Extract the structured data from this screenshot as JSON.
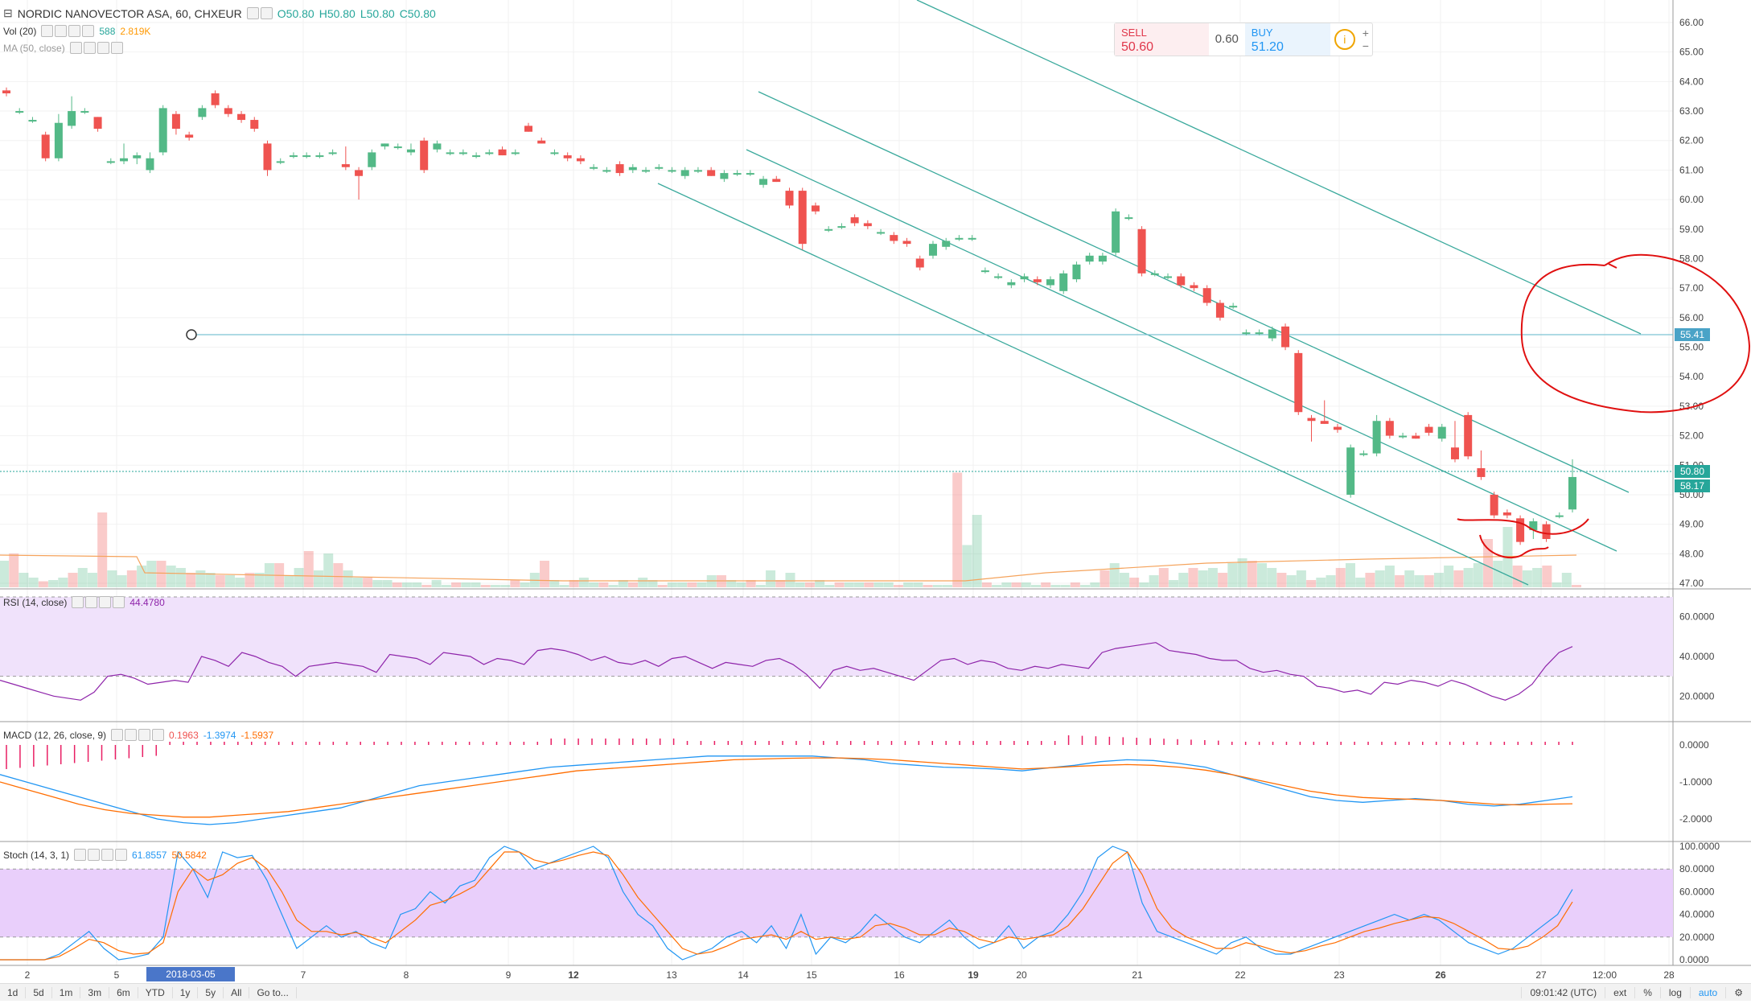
{
  "main_legend": {
    "title": "NORDIC NANOVECTOR ASA, 60, CHXEUR",
    "open": "O50.80",
    "high": "H50.80",
    "low": "L50.80",
    "close": "C50.80"
  },
  "vol_legend": {
    "label": "Vol (20)",
    "value1": "588",
    "value2": "2.819K"
  },
  "ma_legend": {
    "label": "MA (50, close)"
  },
  "trade_panel": {
    "sell_label": "SELL",
    "sell_price": "50.60",
    "spread": "0.60",
    "buy_label": "BUY",
    "buy_price": "51.20",
    "info_symbol": "i",
    "plus": "+",
    "minus": "−"
  },
  "rsi_legend": {
    "label": "RSI (14, close)",
    "value": "44.4780"
  },
  "macd_legend": {
    "label": "MACD (12, 26, close, 9)",
    "hist": "0.1963",
    "macd": "-1.3974",
    "signal": "-1.5937"
  },
  "stoch_legend": {
    "label": "Stoch (14, 3, 1)",
    "k": "61.8557",
    "d": "50.5842"
  },
  "price_axis": [
    "66.00",
    "65.00",
    "64.00",
    "63.00",
    "62.00",
    "61.00",
    "60.00",
    "59.00",
    "58.00",
    "57.00",
    "56.00",
    "55.00",
    "54.00",
    "53.00",
    "52.00",
    "51.00",
    "50.00",
    "49.00",
    "48.00",
    "47.00"
  ],
  "rsi_axis": [
    "60.0000",
    "40.0000",
    "20.0000"
  ],
  "macd_axis": [
    "0.0000",
    "-1.0000",
    "-2.0000"
  ],
  "stoch_axis": [
    "100.0000",
    "80.0000",
    "60.0000",
    "40.0000",
    "20.0000",
    "0.0000"
  ],
  "time_axis": [
    "2",
    "5",
    "7",
    "8",
    "9",
    "12",
    "13",
    "14",
    "15",
    "16",
    "19",
    "20",
    "21",
    "22",
    "23",
    "26",
    "27",
    "12:00",
    "28"
  ],
  "date_badge": "2018-03-05 15:00:00",
  "price_tags": {
    "hline": "55.41",
    "last": "50.80",
    "vol": "58.17"
  },
  "bottom_bar": {
    "ranges": [
      "1d",
      "5d",
      "1m",
      "3m",
      "6m",
      "YTD",
      "1y",
      "5y",
      "All"
    ],
    "goto": "Go to...",
    "time": "09:01:42 (UTC)",
    "ext": "ext",
    "percent": "%",
    "log": "log",
    "auto": "auto"
  },
  "colors": {
    "up": "#26a69a",
    "up_fill": "#53b987",
    "down": "#ef5350",
    "channel": "#3aa99c",
    "rsi_line": "#8e24aa",
    "rsi_band": "#f0e2fb",
    "macd_line": "#2196f3",
    "signal_line": "#ff6d00",
    "stoch_band": "#e9cffb",
    "annotation": "#e01010"
  },
  "chart_data": {
    "type": "candlestick",
    "candles": [
      [
        63.7,
        63.8,
        63.5,
        63.6
      ],
      [
        63.0,
        63.1,
        62.9,
        63.0
      ],
      [
        62.7,
        62.8,
        62.6,
        62.7
      ],
      [
        62.2,
        62.3,
        61.3,
        61.4
      ],
      [
        61.4,
        62.9,
        61.3,
        62.6
      ],
      [
        62.5,
        63.5,
        62.4,
        63.0
      ],
      [
        63.0,
        63.1,
        62.9,
        63.0
      ],
      [
        62.8,
        62.8,
        62.3,
        62.4
      ],
      [
        61.3,
        61.4,
        61.2,
        61.3
      ],
      [
        61.3,
        61.9,
        61.2,
        61.4
      ],
      [
        61.4,
        61.6,
        61.2,
        61.5
      ],
      [
        61.0,
        61.6,
        60.9,
        61.4
      ],
      [
        61.6,
        63.2,
        61.5,
        63.1
      ],
      [
        62.9,
        63.0,
        62.2,
        62.4
      ],
      [
        62.2,
        62.3,
        62.0,
        62.1
      ],
      [
        62.8,
        63.2,
        62.7,
        63.1
      ],
      [
        63.6,
        63.7,
        63.1,
        63.2
      ],
      [
        63.1,
        63.2,
        62.8,
        62.9
      ],
      [
        62.9,
        63.0,
        62.6,
        62.7
      ],
      [
        62.7,
        62.8,
        62.3,
        62.4
      ],
      [
        61.9,
        62.0,
        60.8,
        61.0
      ],
      [
        61.3,
        61.4,
        61.2,
        61.3
      ],
      [
        61.5,
        61.6,
        61.4,
        61.5
      ],
      [
        61.5,
        61.6,
        61.4,
        61.5
      ],
      [
        61.5,
        61.6,
        61.4,
        61.5
      ],
      [
        61.6,
        61.7,
        61.5,
        61.6
      ],
      [
        61.2,
        61.8,
        61.0,
        61.1
      ],
      [
        61.0,
        61.1,
        60.0,
        60.8
      ],
      [
        61.1,
        61.7,
        61.0,
        61.6
      ],
      [
        61.8,
        61.9,
        61.7,
        61.9
      ],
      [
        61.8,
        61.9,
        61.7,
        61.8
      ],
      [
        61.6,
        61.9,
        61.5,
        61.7
      ],
      [
        62.0,
        62.1,
        60.9,
        61.0
      ],
      [
        61.7,
        62.0,
        61.6,
        61.9
      ],
      [
        61.6,
        61.7,
        61.5,
        61.6
      ],
      [
        61.6,
        61.7,
        61.5,
        61.6
      ],
      [
        61.5,
        61.6,
        61.4,
        61.5
      ],
      [
        61.6,
        61.7,
        61.5,
        61.6
      ],
      [
        61.7,
        61.8,
        61.5,
        61.5
      ],
      [
        61.6,
        61.7,
        61.5,
        61.6
      ],
      [
        62.5,
        62.6,
        62.3,
        62.3
      ],
      [
        62.0,
        62.1,
        61.9,
        61.9
      ],
      [
        61.6,
        61.7,
        61.5,
        61.6
      ],
      [
        61.5,
        61.6,
        61.3,
        61.4
      ],
      [
        61.4,
        61.5,
        61.2,
        61.3
      ],
      [
        61.1,
        61.2,
        61.0,
        61.1
      ],
      [
        61.0,
        61.1,
        60.9,
        61.0
      ],
      [
        61.2,
        61.3,
        60.8,
        60.9
      ],
      [
        61.0,
        61.2,
        60.9,
        61.1
      ],
      [
        61.0,
        61.1,
        60.9,
        61.0
      ],
      [
        61.1,
        61.2,
        61.0,
        61.1
      ],
      [
        61.0,
        61.1,
        60.9,
        61.0
      ],
      [
        60.8,
        61.1,
        60.7,
        61.0
      ],
      [
        61.0,
        61.1,
        60.9,
        61.0
      ],
      [
        61.0,
        61.1,
        60.8,
        60.8
      ],
      [
        60.7,
        61.0,
        60.6,
        60.9
      ],
      [
        60.9,
        61.0,
        60.8,
        60.9
      ],
      [
        60.9,
        61.0,
        60.8,
        60.9
      ],
      [
        60.5,
        60.8,
        60.4,
        60.7
      ],
      [
        60.7,
        60.8,
        60.6,
        60.6
      ],
      [
        60.3,
        60.4,
        59.7,
        59.8
      ],
      [
        60.3,
        60.4,
        58.3,
        58.5
      ],
      [
        59.8,
        59.9,
        59.5,
        59.6
      ],
      [
        59.0,
        59.1,
        58.9,
        59.0
      ],
      [
        59.1,
        59.2,
        59.0,
        59.1
      ],
      [
        59.4,
        59.5,
        59.1,
        59.2
      ],
      [
        59.2,
        59.3,
        59.0,
        59.1
      ],
      [
        58.9,
        59.0,
        58.8,
        58.9
      ],
      [
        58.8,
        58.9,
        58.5,
        58.6
      ],
      [
        58.6,
        58.7,
        58.4,
        58.5
      ],
      [
        58.0,
        58.1,
        57.6,
        57.7
      ],
      [
        58.1,
        58.6,
        58.0,
        58.5
      ],
      [
        58.4,
        58.7,
        58.3,
        58.6
      ],
      [
        58.7,
        58.8,
        58.6,
        58.7
      ],
      [
        58.7,
        58.8,
        58.6,
        58.7
      ],
      [
        57.6,
        57.7,
        57.5,
        57.6
      ],
      [
        57.4,
        57.5,
        57.3,
        57.4
      ],
      [
        57.1,
        57.3,
        57.0,
        57.2
      ],
      [
        57.3,
        57.5,
        57.2,
        57.4
      ],
      [
        57.3,
        57.4,
        57.1,
        57.2
      ],
      [
        57.1,
        57.4,
        57.0,
        57.3
      ],
      [
        56.9,
        57.6,
        56.8,
        57.5
      ],
      [
        57.3,
        57.9,
        57.2,
        57.8
      ],
      [
        57.9,
        58.2,
        57.8,
        58.1
      ],
      [
        57.9,
        58.2,
        57.8,
        58.1
      ],
      [
        58.2,
        59.7,
        58.1,
        59.6
      ],
      [
        59.4,
        59.5,
        59.3,
        59.4
      ],
      [
        59.0,
        59.1,
        57.4,
        57.5
      ],
      [
        57.5,
        57.6,
        57.4,
        57.5
      ],
      [
        57.4,
        57.5,
        57.3,
        57.4
      ],
      [
        57.4,
        57.5,
        57.0,
        57.1
      ],
      [
        57.1,
        57.2,
        56.9,
        57.0
      ],
      [
        57.0,
        57.1,
        56.4,
        56.5
      ],
      [
        56.5,
        56.6,
        55.9,
        56.0
      ],
      [
        56.4,
        56.5,
        56.3,
        56.4
      ],
      [
        55.5,
        55.6,
        55.4,
        55.5
      ],
      [
        55.5,
        55.6,
        55.4,
        55.5
      ],
      [
        55.3,
        55.7,
        55.2,
        55.6
      ],
      [
        55.7,
        55.8,
        54.9,
        55.0
      ],
      [
        54.8,
        54.9,
        52.7,
        52.8
      ],
      [
        52.6,
        52.7,
        51.8,
        52.5
      ],
      [
        52.5,
        53.2,
        52.4,
        52.4
      ],
      [
        52.3,
        52.4,
        52.1,
        52.2
      ],
      [
        50.0,
        51.7,
        49.9,
        51.6
      ],
      [
        51.4,
        51.5,
        51.3,
        51.4
      ],
      [
        51.4,
        52.7,
        51.3,
        52.5
      ],
      [
        52.5,
        52.6,
        51.9,
        52.0
      ],
      [
        52.0,
        52.1,
        51.9,
        52.0
      ],
      [
        52.0,
        52.1,
        51.9,
        51.9
      ],
      [
        52.3,
        52.4,
        52.0,
        52.1
      ],
      [
        51.9,
        52.4,
        51.8,
        52.3
      ],
      [
        51.6,
        52.5,
        51.1,
        51.2
      ],
      [
        52.7,
        52.8,
        51.2,
        51.3
      ],
      [
        50.9,
        51.5,
        50.5,
        50.6
      ],
      [
        50.0,
        50.1,
        49.2,
        49.3
      ],
      [
        49.4,
        49.5,
        49.2,
        49.3
      ],
      [
        49.2,
        49.3,
        48.3,
        48.4
      ],
      [
        48.8,
        49.2,
        48.5,
        49.1
      ],
      [
        49.0,
        49.1,
        48.4,
        48.5
      ],
      [
        49.3,
        49.4,
        49.2,
        49.3
      ],
      [
        49.5,
        51.2,
        49.4,
        50.6
      ]
    ],
    "volume": [
      0.22,
      0.28,
      0.12,
      0.08,
      0.05,
      0.06,
      0.08,
      0.12,
      0.16,
      0.12,
      0.62,
      0.14,
      0.1,
      0.14,
      0.18,
      0.22,
      0.22,
      0.18,
      0.16,
      0.12,
      0.14,
      0.12,
      0.1,
      0.1,
      0.08,
      0.12,
      0.12,
      0.2,
      0.2,
      0.1,
      0.16,
      0.3,
      0.14,
      0.28,
      0.2,
      0.14,
      0.08,
      0.08,
      0.06,
      0.06,
      0.04,
      0.04,
      0.04,
      0.02,
      0.06,
      0.02,
      0.04,
      0.04,
      0.04,
      0.02,
      0.02,
      0.02,
      0.06,
      0.04,
      0.12,
      0.22,
      0.06,
      0.02,
      0.06,
      0.08,
      0.04,
      0.04,
      0.02,
      0.06,
      0.04,
      0.08,
      0.06,
      0.02,
      0.04,
      0.04,
      0.04,
      0.04,
      0.1,
      0.1,
      0.06,
      0.04,
      0.06,
      0.02,
      0.14,
      0.06,
      0.12,
      0.04,
      0.04,
      0.06,
      0.02,
      0.04,
      0.04,
      0.04,
      0.04,
      0.04,
      0.04,
      0.02,
      0.04,
      0.04,
      0.02,
      0.02,
      0.02,
      0.04,
      0.04,
      0.02,
      0.04,
      0.02,
      0.04,
      0.04,
      0.04,
      0.02,
      0.04,
      0.02,
      0.02,
      0.04,
      0.02,
      0.04,
      0.14,
      0.2,
      0.12,
      0.08,
      0.04,
      0.1,
      0.16,
      0.06,
      0.12,
      0.16,
      0.14,
      0.16,
      0.12,
      0.2,
      0.24,
      0.22,
      0.2,
      0.16,
      0.12,
      0.1,
      0.14,
      0.06,
      0.08,
      0.1,
      0.16,
      0.2,
      0.08,
      0.12,
      0.14,
      0.18,
      0.1,
      0.14,
      0.1,
      0.1,
      0.12,
      0.18,
      0.14,
      0.16,
      0.2,
      0.4,
      0.22,
      0.5,
      0.18,
      0.14,
      0.16,
      0.18,
      0.04,
      0.12,
      0.02
    ],
    "volume_spikes": {
      "vol_idx": [
        10,
        97,
        98,
        99
      ],
      "heights": [
        0.62,
        0.95,
        0.35,
        0.6
      ]
    },
    "rsi": [
      28,
      26,
      24,
      22,
      20,
      19,
      18,
      22,
      30,
      31,
      29,
      26,
      27,
      28,
      27,
      40,
      38,
      35,
      42,
      40,
      37,
      35,
      30,
      35,
      36,
      37,
      36,
      35,
      32,
      41,
      40,
      39,
      36,
      42,
      41,
      40,
      36,
      39,
      38,
      36,
      43,
      44,
      43,
      41,
      38,
      40,
      37,
      36,
      38,
      35,
      39,
      40,
      37,
      34,
      37,
      36,
      35,
      38,
      39,
      36,
      31,
      24,
      33,
      35,
      33,
      34,
      32,
      30,
      28,
      33,
      38,
      39,
      36,
      38,
      37,
      34,
      33,
      35,
      34,
      36,
      35,
      34,
      42,
      44,
      45,
      46,
      47,
      43,
      42,
      41,
      39,
      38,
      38,
      34,
      32,
      33,
      31,
      30,
      25,
      24,
      22,
      23,
      21,
      27,
      26,
      28,
      27,
      25,
      28,
      26,
      23,
      20,
      18,
      21,
      26,
      35,
      42,
      45
    ],
    "macd": [
      -0.8,
      -1.0,
      -1.2,
      -1.4,
      -1.6,
      -1.8,
      -2.0,
      -2.1,
      -2.15,
      -2.1,
      -2.0,
      -1.9,
      -1.8,
      -1.7,
      -1.5,
      -1.3,
      -1.1,
      -1.0,
      -0.9,
      -0.8,
      -0.7,
      -0.6,
      -0.55,
      -0.5,
      -0.45,
      -0.4,
      -0.35,
      -0.3,
      -0.3,
      -0.3,
      -0.3,
      -0.3,
      -0.35,
      -0.4,
      -0.5,
      -0.55,
      -0.6,
      -0.62,
      -0.65,
      -0.7,
      -0.62,
      -0.55,
      -0.45,
      -0.4,
      -0.42,
      -0.5,
      -0.6,
      -0.8,
      -1.0,
      -1.2,
      -1.4,
      -1.5,
      -1.55,
      -1.5,
      -1.45,
      -1.5,
      -1.6,
      -1.65,
      -1.6,
      -1.5,
      -1.4
    ],
    "signal": [
      -1.0,
      -1.2,
      -1.4,
      -1.6,
      -1.75,
      -1.85,
      -1.9,
      -1.95,
      -1.95,
      -1.9,
      -1.85,
      -1.8,
      -1.7,
      -1.6,
      -1.5,
      -1.4,
      -1.3,
      -1.2,
      -1.1,
      -1.0,
      -0.9,
      -0.8,
      -0.7,
      -0.65,
      -0.6,
      -0.55,
      -0.5,
      -0.45,
      -0.4,
      -0.38,
      -0.36,
      -0.35,
      -0.35,
      -0.37,
      -0.4,
      -0.45,
      -0.5,
      -0.55,
      -0.6,
      -0.65,
      -0.62,
      -0.58,
      -0.55,
      -0.53,
      -0.55,
      -0.6,
      -0.68,
      -0.8,
      -0.95,
      -1.1,
      -1.25,
      -1.35,
      -1.42,
      -1.45,
      -1.47,
      -1.5,
      -1.55,
      -1.6,
      -1.62,
      -1.6,
      -1.59
    ],
    "stoch_k": [
      0,
      0,
      0,
      0,
      5,
      15,
      25,
      10,
      0,
      2,
      5,
      20,
      95,
      80,
      55,
      95,
      90,
      92,
      70,
      40,
      10,
      20,
      30,
      20,
      25,
      15,
      10,
      40,
      45,
      60,
      50,
      65,
      70,
      90,
      100,
      95,
      80,
      85,
      90,
      95,
      100,
      90,
      60,
      40,
      30,
      10,
      0,
      5,
      10,
      20,
      25,
      15,
      30,
      10,
      40,
      5,
      20,
      15,
      25,
      40,
      30,
      20,
      15,
      25,
      35,
      20,
      10,
      15,
      30,
      10,
      20,
      25,
      40,
      60,
      90,
      100,
      95,
      50,
      25,
      20,
      15,
      10,
      5,
      15,
      20,
      10,
      5,
      5,
      10,
      15,
      20,
      25,
      30,
      35,
      40,
      35,
      40,
      35,
      25,
      15,
      10,
      5,
      10,
      20,
      30,
      40,
      62
    ],
    "stoch_d": [
      0,
      0,
      0,
      0,
      3,
      10,
      18,
      15,
      8,
      5,
      6,
      15,
      60,
      80,
      70,
      75,
      85,
      90,
      80,
      60,
      35,
      25,
      25,
      22,
      24,
      20,
      15,
      25,
      35,
      48,
      52,
      58,
      65,
      80,
      95,
      95,
      88,
      85,
      88,
      92,
      95,
      92,
      75,
      55,
      40,
      25,
      10,
      5,
      7,
      12,
      18,
      20,
      22,
      18,
      25,
      18,
      20,
      18,
      20,
      30,
      32,
      28,
      22,
      22,
      28,
      25,
      18,
      15,
      20,
      18,
      20,
      22,
      30,
      45,
      65,
      85,
      95,
      75,
      45,
      28,
      20,
      15,
      10,
      10,
      15,
      12,
      8,
      6,
      8,
      12,
      15,
      20,
      25,
      28,
      32,
      35,
      38,
      37,
      32,
      25,
      18,
      10,
      9,
      12,
      20,
      30,
      51
    ]
  }
}
